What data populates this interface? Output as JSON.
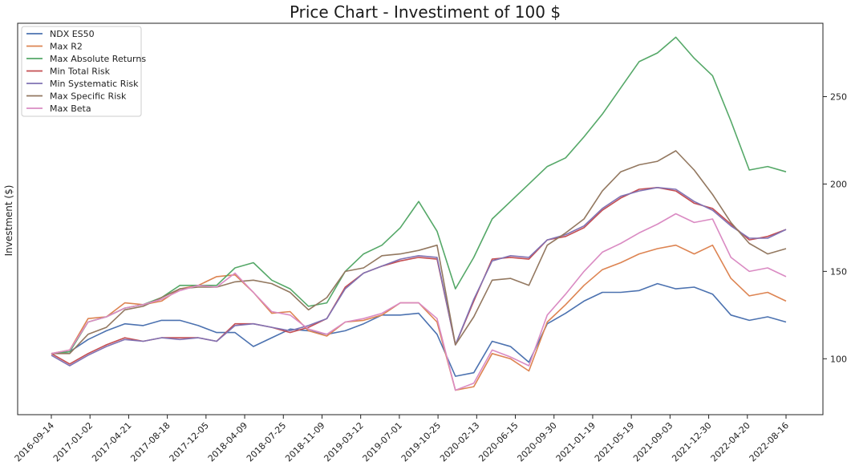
{
  "chart_data": {
    "type": "line",
    "title": "Price Chart - Investiment of 100 $",
    "xlabel": "",
    "ylabel": "Investment ($)",
    "y_axis_side": "right",
    "ylim": [
      68,
      292
    ],
    "yticks": [
      100,
      150,
      200,
      250
    ],
    "xticks": [
      "2016-09-14",
      "2017-01-02",
      "2017-04-21",
      "2017-08-18",
      "2017-12-05",
      "2018-04-09",
      "2018-07-25",
      "2018-11-09",
      "2019-03-12",
      "2019-07-01",
      "2019-10-25",
      "2020-02-13",
      "2020-06-15",
      "2020-09-30",
      "2021-01-19",
      "2021-05-19",
      "2021-09-03",
      "2021-12-30",
      "2022-04-20",
      "2022-08-16"
    ],
    "grid": false,
    "legend_position": "top-left",
    "series": [
      {
        "name": "NDX ES50",
        "color": "#4c72b0",
        "values": [
          103,
          104,
          111,
          116,
          120,
          119,
          122,
          122,
          119,
          115,
          115,
          107,
          112,
          117,
          116,
          114,
          116,
          120,
          125,
          125,
          126,
          114,
          90,
          92,
          110,
          107,
          98,
          120,
          126,
          133,
          138,
          138,
          139,
          143,
          140,
          141,
          137,
          125,
          122,
          124,
          121
        ]
      },
      {
        "name": "Max R2",
        "color": "#dd8452",
        "values": [
          103,
          105,
          123,
          124,
          132,
          131,
          133,
          140,
          142,
          147,
          148,
          138,
          126,
          127,
          116,
          113,
          121,
          122,
          125,
          132,
          132,
          121,
          82,
          84,
          103,
          100,
          93,
          121,
          131,
          142,
          151,
          155,
          160,
          163,
          165,
          160,
          165,
          146,
          136,
          138,
          133
        ]
      },
      {
        "name": "Max Absolute Returns",
        "color": "#55a868",
        "values": [
          103,
          104,
          121,
          124,
          129,
          131,
          135,
          142,
          142,
          142,
          152,
          155,
          145,
          140,
          130,
          132,
          150,
          160,
          165,
          175,
          190,
          173,
          140,
          158,
          180,
          190,
          200,
          210,
          215,
          227,
          240,
          255,
          270,
          275,
          284,
          272,
          262,
          236,
          208,
          210,
          207
        ]
      },
      {
        "name": "Min Total Risk",
        "color": "#c44e52",
        "values": [
          103,
          97,
          103,
          108,
          112,
          110,
          112,
          112,
          112,
          110,
          120,
          120,
          118,
          115,
          118,
          123,
          141,
          149,
          153,
          156,
          158,
          157,
          108,
          133,
          157,
          158,
          157,
          168,
          170,
          175,
          185,
          192,
          197,
          198,
          196,
          189,
          186,
          177,
          168,
          170,
          174
        ]
      },
      {
        "name": "Min Systematic Risk",
        "color": "#8172b3",
        "values": [
          102,
          96,
          102,
          107,
          111,
          110,
          112,
          111,
          112,
          110,
          119,
          120,
          118,
          116,
          119,
          123,
          140,
          149,
          153,
          157,
          159,
          158,
          108,
          134,
          156,
          159,
          158,
          168,
          171,
          176,
          186,
          193,
          196,
          198,
          197,
          190,
          185,
          176,
          169,
          169,
          174
        ]
      },
      {
        "name": "Max Specific Risk",
        "color": "#937860",
        "values": [
          103,
          103,
          114,
          118,
          128,
          130,
          135,
          140,
          141,
          141,
          144,
          145,
          143,
          138,
          128,
          135,
          150,
          152,
          159,
          160,
          162,
          165,
          108,
          124,
          145,
          146,
          142,
          165,
          172,
          180,
          196,
          207,
          211,
          213,
          219,
          208,
          194,
          178,
          166,
          160,
          163
        ]
      },
      {
        "name": "Max Beta",
        "color": "#da8bc3",
        "values": [
          103,
          105,
          121,
          124,
          129,
          131,
          134,
          139,
          142,
          141,
          149,
          138,
          127,
          125,
          117,
          114,
          121,
          123,
          126,
          132,
          132,
          123,
          82,
          86,
          105,
          101,
          96,
          125,
          137,
          150,
          161,
          166,
          172,
          177,
          183,
          178,
          180,
          158,
          150,
          152,
          147
        ]
      }
    ]
  }
}
